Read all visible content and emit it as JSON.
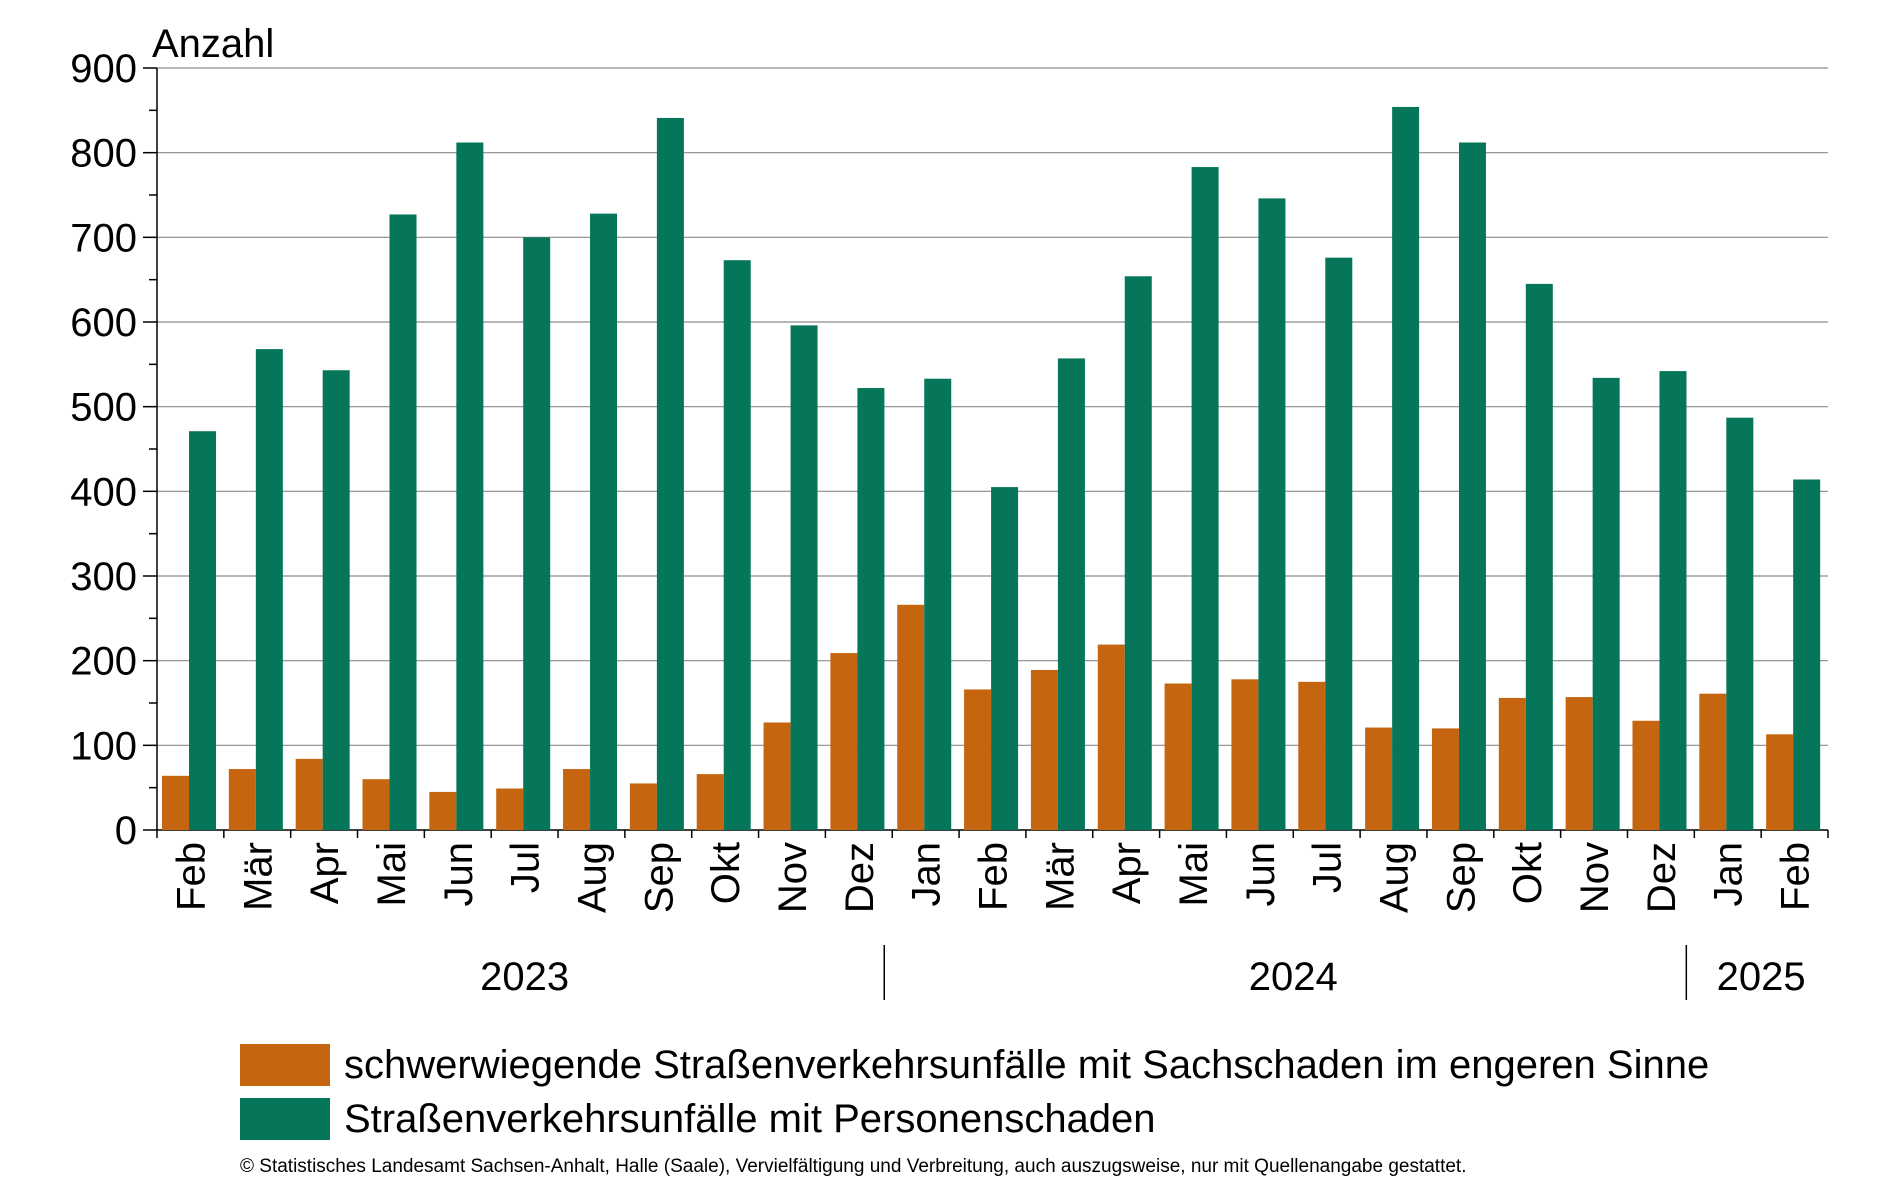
{
  "chart_data": {
    "type": "bar",
    "ylabel": "Anzahl",
    "ylim": [
      0,
      900
    ],
    "yticks": [
      0,
      100,
      200,
      300,
      400,
      500,
      600,
      700,
      800,
      900
    ],
    "grid": true,
    "categories": [
      "Feb",
      "Mär",
      "Apr",
      "Mai",
      "Jun",
      "Jul",
      "Aug",
      "Sep",
      "Okt",
      "Nov",
      "Dez",
      "Jan",
      "Feb",
      "Mär",
      "Apr",
      "Mai",
      "Jun",
      "Jul",
      "Aug",
      "Sep",
      "Okt",
      "Nov",
      "Dez",
      "Jan",
      "Feb"
    ],
    "years": [
      {
        "label": "2023",
        "start": 0,
        "end": 10
      },
      {
        "label": "2024",
        "start": 11,
        "end": 22
      },
      {
        "label": "2025",
        "start": 23,
        "end": 24
      }
    ],
    "series": [
      {
        "name": "schwerwiegende Straßenverkehrsunfälle mit Sachschaden im engeren Sinne",
        "color": "#C5650F",
        "values": [
          64,
          72,
          84,
          60,
          45,
          49,
          72,
          55,
          66,
          127,
          209,
          266,
          166,
          189,
          219,
          173,
          178,
          175,
          121,
          120,
          156,
          157,
          129,
          161,
          113
        ]
      },
      {
        "name": "Straßenverkehrsunfälle mit Personenschaden",
        "color": "#06765A",
        "values": [
          471,
          568,
          543,
          727,
          812,
          700,
          728,
          841,
          673,
          596,
          522,
          533,
          405,
          557,
          654,
          783,
          746,
          676,
          854,
          812,
          645,
          534,
          542,
          487,
          414
        ]
      }
    ]
  },
  "footer": "© Statistisches Landesamt Sachsen-Anhalt, Halle (Saale), Vervielfältigung und Verbreitung, auch auszugsweise, nur mit Quellenangabe gestattet."
}
